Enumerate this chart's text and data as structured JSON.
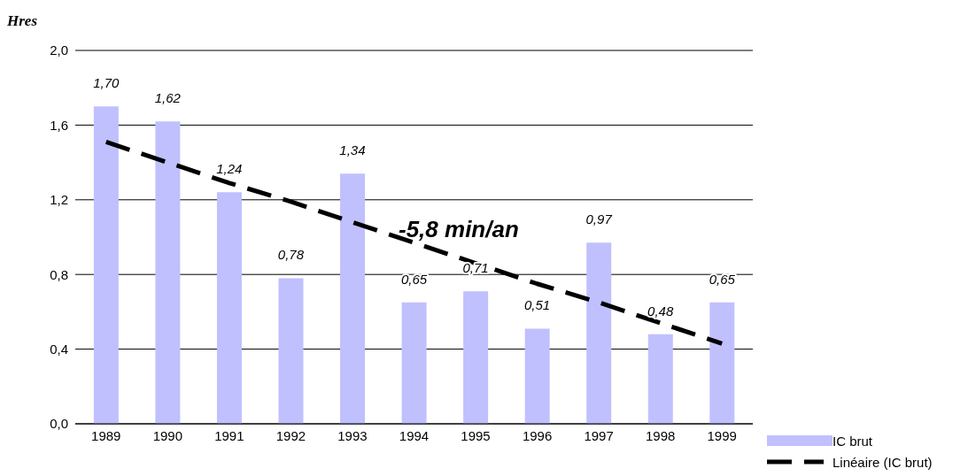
{
  "chart_data": {
    "type": "bar",
    "ylabel": "Hres",
    "categories": [
      "1989",
      "1990",
      "1991",
      "1992",
      "1993",
      "1994",
      "1995",
      "1996",
      "1997",
      "1998",
      "1999"
    ],
    "series": [
      {
        "name": "IC brut",
        "color": "#c0c0ff",
        "values": [
          1.7,
          1.62,
          1.24,
          0.78,
          1.34,
          0.65,
          0.71,
          0.51,
          0.97,
          0.48,
          0.65
        ],
        "value_labels": [
          "1,70",
          "1,62",
          "1,24",
          "0,78",
          "1,34",
          "0,65",
          "0,71",
          "0,51",
          "0,97",
          "0,48",
          "0,65"
        ]
      },
      {
        "name": "Linéaire (IC brut)",
        "type": "line",
        "color": "#000000",
        "line_style": "dashed",
        "marker": "none",
        "values": [
          1.51,
          1.4,
          1.29,
          1.19,
          1.08,
          0.97,
          0.86,
          0.75,
          0.65,
          0.54,
          0.43
        ]
      }
    ],
    "ylim": [
      0,
      2
    ],
    "yticks": [
      {
        "value": 0,
        "label": "0,0"
      },
      {
        "value": 0.4,
        "label": "0,4"
      },
      {
        "value": 0.8,
        "label": "0,8"
      },
      {
        "value": 1.2,
        "label": "1,2"
      },
      {
        "value": 1.6,
        "label": "1,6"
      },
      {
        "value": 2,
        "label": "2,0"
      }
    ],
    "grid": "y",
    "legend": "bottom right",
    "annotations": [
      "-5,8 min/an"
    ]
  }
}
